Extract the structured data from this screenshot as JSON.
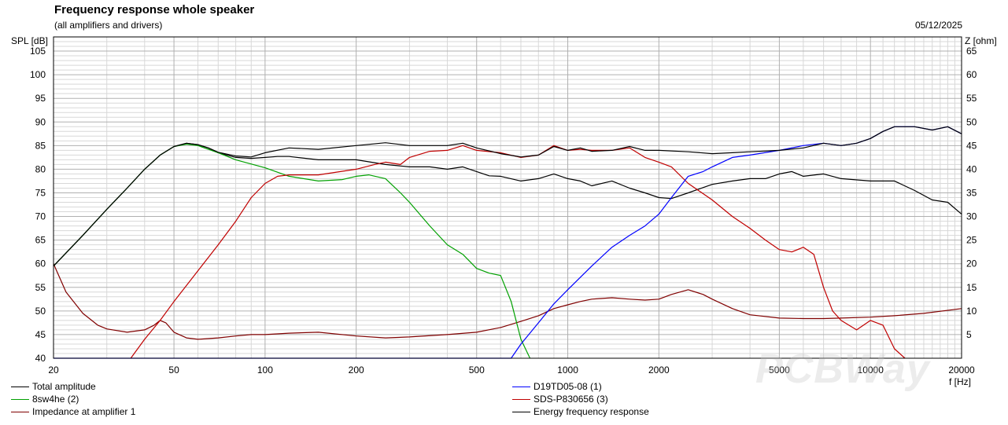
{
  "header": {
    "title": "Frequency response whole speaker",
    "subtitle": "(all amplifiers and drivers)",
    "date": "05/12/2025"
  },
  "watermark": "PCBWay",
  "colors": {
    "total": "#000000",
    "woofer": "#00a000",
    "tweeter": "#0000ff",
    "fullrange": "#c00000",
    "impedance": "#800000",
    "energy": "#000000",
    "grid_major": "#b0b0b0",
    "grid_minor": "#d8d8d8"
  },
  "chart_data": {
    "type": "line",
    "title": "Frequency response whole speaker",
    "xlabel": "f [Hz]",
    "ylabel": "SPL [dB]",
    "y2label": "Z [ohm]",
    "xscale": "log",
    "xlim": [
      20,
      20000
    ],
    "ylim": [
      40,
      108
    ],
    "y2lim": [
      0,
      68
    ],
    "grid": true,
    "legend_position": "bottom",
    "xticks": [
      20,
      50,
      100,
      200,
      500,
      1000,
      2000,
      5000,
      10000,
      20000
    ],
    "xtick_labels": [
      "20",
      "50",
      "100",
      "200",
      "500",
      "1000",
      "2000",
      "5000",
      "10000",
      "20000"
    ],
    "yticks": [
      40,
      45,
      50,
      55,
      60,
      65,
      70,
      75,
      80,
      85,
      90,
      95,
      100,
      105
    ],
    "y2ticks": [
      "",
      "5",
      "10",
      "15",
      "20",
      "25",
      "30",
      "35",
      "40",
      "45",
      "50",
      "55",
      "60",
      "65"
    ],
    "series": [
      {
        "name": "Total amplitude",
        "axis": "left",
        "x": [
          20,
          25,
          30,
          35,
          40,
          45,
          50,
          55,
          60,
          65,
          70,
          80,
          90,
          100,
          120,
          150,
          200,
          250,
          300,
          350,
          400,
          450,
          500,
          600,
          700,
          800,
          900,
          1000,
          1100,
          1200,
          1400,
          1600,
          1800,
          2000,
          2500,
          3000,
          3500,
          4000,
          5000,
          6000,
          7000,
          8000,
          9000,
          10000,
          11000,
          12000,
          14000,
          16000,
          18000,
          20000
        ],
        "y": [
          59.5,
          66,
          71.5,
          76,
          80,
          83,
          84.8,
          85.5,
          85.2,
          84.5,
          83.6,
          82.8,
          82.6,
          83.5,
          84.5,
          84.2,
          85,
          85.6,
          85,
          85,
          85,
          85.5,
          84.5,
          83.3,
          82.6,
          83,
          84.8,
          84,
          84.5,
          83.8,
          84,
          84.8,
          84,
          84,
          83.7,
          83.3,
          83.5,
          83.7,
          84,
          84.5,
          85.5,
          85,
          85.5,
          86.5,
          88,
          89,
          89,
          88.3,
          89,
          87.5
        ]
      },
      {
        "name": "8sw4he (2)",
        "axis": "left",
        "x": [
          20,
          25,
          30,
          35,
          40,
          45,
          50,
          55,
          60,
          70,
          80,
          100,
          120,
          150,
          180,
          200,
          220,
          250,
          280,
          300,
          350,
          400,
          450,
          500,
          550,
          600,
          650,
          700,
          750
        ],
        "y": [
          59.5,
          66,
          71.5,
          76,
          80,
          83,
          84.8,
          85.3,
          85,
          83.5,
          82,
          80.3,
          78.5,
          77.5,
          77.8,
          78.5,
          78.8,
          78,
          75,
          73,
          68,
          64,
          62,
          59,
          58,
          57.5,
          52,
          44,
          40
        ]
      },
      {
        "name": "D19TD05-08 (1)",
        "axis": "left",
        "x": [
          20,
          600,
          650,
          700,
          800,
          900,
          1000,
          1200,
          1400,
          1600,
          1800,
          2000,
          2200,
          2500,
          2800,
          3000,
          3500,
          4000,
          5000,
          6000,
          7000,
          8000,
          9000,
          10000,
          11000,
          12000,
          14000,
          16000,
          18000,
          20000
        ],
        "y": [
          40,
          40,
          40,
          43,
          47.5,
          51.5,
          54.5,
          59.5,
          63.5,
          66,
          68,
          70.5,
          74,
          78.5,
          79.5,
          80.5,
          82.5,
          83,
          84,
          85,
          85.5,
          85,
          85.5,
          86.5,
          88,
          89,
          89,
          88.3,
          89,
          87.5
        ]
      },
      {
        "name": "SDS-P830656 (3)",
        "axis": "left",
        "x": [
          36,
          40,
          45,
          50,
          60,
          70,
          80,
          90,
          100,
          110,
          120,
          150,
          200,
          230,
          250,
          280,
          300,
          350,
          400,
          450,
          500,
          600,
          700,
          800,
          900,
          1000,
          1100,
          1200,
          1400,
          1600,
          1800,
          2000,
          2200,
          2500,
          3000,
          3500,
          4000,
          4500,
          5000,
          5500,
          6000,
          6500,
          7000,
          7500,
          8000,
          9000,
          10000,
          11000,
          12000,
          13000
        ],
        "y": [
          40,
          44,
          48,
          52,
          58.5,
          64,
          69,
          74,
          77,
          78.5,
          78.8,
          78.8,
          80,
          81,
          81.5,
          81,
          82.5,
          83.8,
          84,
          85,
          84,
          83.5,
          82.5,
          83,
          85,
          84,
          84.2,
          84,
          84,
          84.5,
          82.5,
          81.5,
          80.5,
          77,
          73.5,
          70,
          67.5,
          65,
          63,
          62.5,
          63.5,
          62,
          55,
          50,
          48,
          46,
          48,
          47,
          42,
          40
        ]
      },
      {
        "name": "Impedance at amplifier 1",
        "axis": "right",
        "x": [
          20,
          22,
          25,
          28,
          30,
          35,
          40,
          43,
          45,
          47,
          50,
          55,
          60,
          70,
          80,
          90,
          100,
          120,
          150,
          200,
          250,
          300,
          400,
          500,
          600,
          700,
          800,
          900,
          1000,
          1100,
          1200,
          1400,
          1600,
          1800,
          2000,
          2200,
          2500,
          2800,
          3000,
          3500,
          4000,
          5000,
          6000,
          7000,
          8000,
          10000,
          12000,
          15000,
          20000
        ],
        "y": [
          20,
          14,
          9.5,
          7,
          6.2,
          5.5,
          6,
          7,
          8,
          7.5,
          5.5,
          4.3,
          4,
          4.3,
          4.7,
          5,
          5,
          5.3,
          5.5,
          4.7,
          4.3,
          4.5,
          5,
          5.5,
          6.5,
          7.8,
          9,
          10.5,
          11.3,
          12,
          12.5,
          12.8,
          12.5,
          12.3,
          12.5,
          13.5,
          14.5,
          13.5,
          12.5,
          10.5,
          9.2,
          8.5,
          8.4,
          8.4,
          8.5,
          8.7,
          9,
          9.5,
          10.5
        ]
      },
      {
        "name": "Energy frequency response",
        "axis": "left",
        "x": [
          20,
          25,
          30,
          35,
          40,
          45,
          50,
          55,
          60,
          65,
          70,
          80,
          90,
          100,
          110,
          120,
          150,
          200,
          250,
          300,
          350,
          400,
          450,
          500,
          550,
          600,
          700,
          800,
          900,
          1000,
          1100,
          1200,
          1400,
          1600,
          1800,
          2000,
          2200,
          2500,
          3000,
          3500,
          4000,
          4500,
          5000,
          5500,
          6000,
          7000,
          8000,
          10000,
          12000,
          14000,
          16000,
          18000,
          20000
        ],
        "y": [
          59.5,
          66,
          71.5,
          76,
          80,
          83,
          84.8,
          85.5,
          85.2,
          84.5,
          83.5,
          82.5,
          82.3,
          82.5,
          82.7,
          82.7,
          82,
          82,
          81,
          80.5,
          80.5,
          80,
          80.5,
          79.5,
          78.6,
          78.5,
          77.5,
          78,
          79,
          78,
          77.5,
          76.5,
          77.5,
          76,
          75,
          74,
          73.8,
          75,
          76.8,
          77.5,
          78,
          78,
          79,
          79.5,
          78.5,
          79,
          78,
          77.5,
          77.5,
          75.5,
          73.5,
          73,
          70.5
        ]
      }
    ]
  },
  "legend": {
    "left": [
      "Total amplitude",
      "8sw4he (2)",
      "Impedance at amplifier 1"
    ],
    "right": [
      "D19TD05-08 (1)",
      "SDS-P830656 (3)",
      "Energy frequency response"
    ]
  }
}
